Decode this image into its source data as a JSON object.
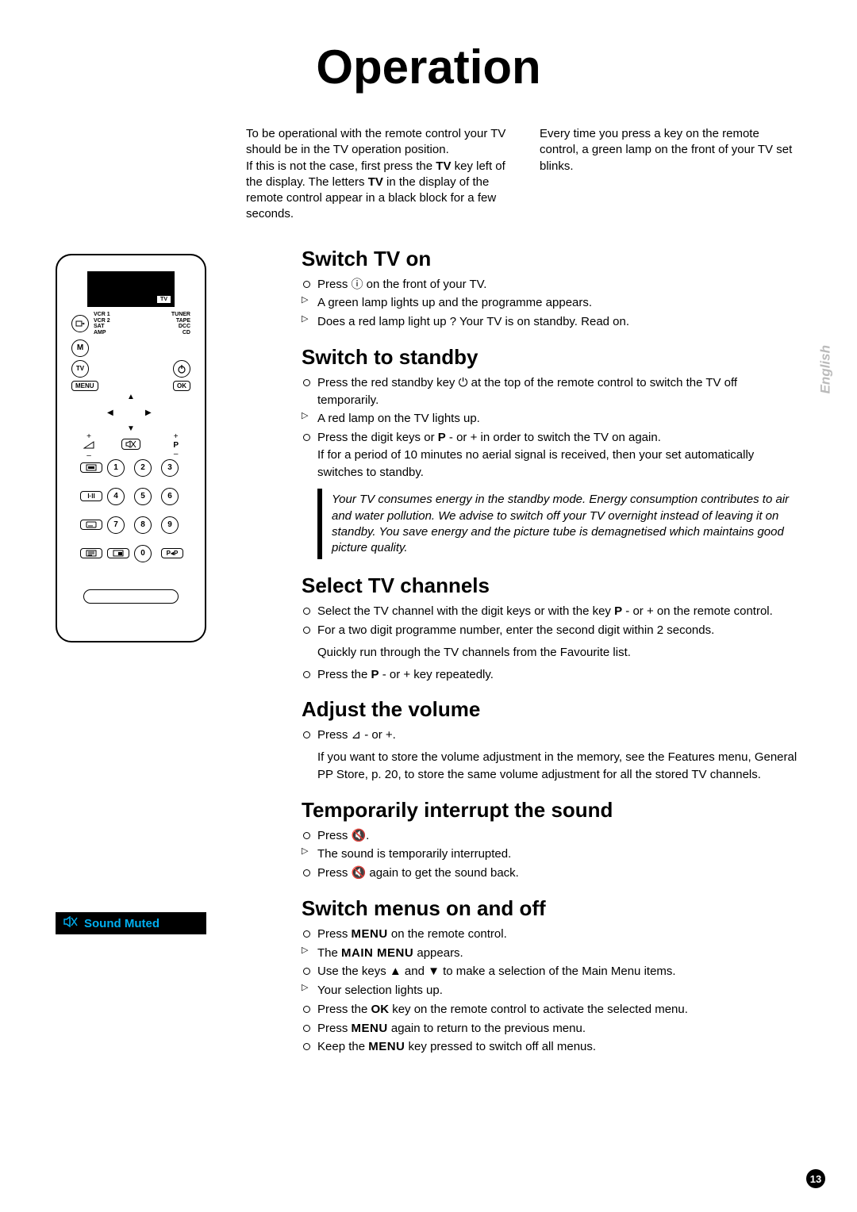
{
  "title": "Operation",
  "language_tab": "English",
  "page_number": "13",
  "intro": {
    "left": "To be operational with the remote control your TV should be in the TV operation position.\nIf this is not the case, first press the TV key left of the display. The letters TV in the display of the remote control appear in a black block for a few seconds.",
    "left_bold_1": "TV",
    "left_bold_2": "TV",
    "right": "Every time you press a key on the remote control, a green lamp on the front of your TV set blinks."
  },
  "remote": {
    "screen_tag": "TV",
    "left_labels": [
      "VCR 1",
      "VCR 2",
      "SAT",
      "AMP"
    ],
    "right_labels": [
      "TUNER",
      "TAPE",
      "DCC",
      "CD"
    ],
    "menu": "MENU",
    "ok": "OK",
    "m": "M",
    "tv": "TV",
    "vol_plus": "+",
    "vol_minus": "–",
    "p_label": "P",
    "p_plus": "+",
    "p_minus": "–",
    "num": [
      "1",
      "2",
      "3",
      "4",
      "5",
      "6",
      "7",
      "8",
      "9",
      "0"
    ],
    "pp": "P◂P",
    "dual": "I·II"
  },
  "side_note": {
    "text": "Sound Muted"
  },
  "sections": {
    "switch_on": {
      "heading": "Switch TV on",
      "items": [
        {
          "t": "o",
          "text": "Press ⓘ on the front of your TV."
        },
        {
          "t": "t",
          "text": "A green lamp lights up and the programme appears."
        },
        {
          "t": "t",
          "text": "Does a red lamp light up ? Your TV is on standby. Read on."
        }
      ]
    },
    "standby": {
      "heading": "Switch to standby",
      "items": [
        {
          "t": "o",
          "text": "Press the red standby key ⏻ at the top of the remote control to switch the TV off temporarily."
        },
        {
          "t": "t",
          "text": "A red lamp on the TV lights up."
        },
        {
          "t": "o",
          "mixed": [
            "Press the digit keys or ",
            {
              "b": "P"
            },
            " - or +  in order to switch the TV on again.",
            "\nIf for a period of 10 minutes no aerial signal is received, then your set automatically switches to standby."
          ]
        }
      ],
      "note": "Your TV consumes energy in the standby mode. Energy consumption contributes to air and water pollution. We advise to switch off your TV overnight instead of leaving it on standby. You save energy and the picture tube is demagnetised which maintains good picture quality."
    },
    "channels": {
      "heading": "Select TV channels",
      "items": [
        {
          "t": "o",
          "mixed": [
            "Select the TV channel with the digit keys or with the key ",
            {
              "b": "P"
            },
            " - or + on the remote control."
          ]
        },
        {
          "t": "o",
          "text": "For a two digit programme number, enter the second digit within 2 seconds."
        }
      ],
      "plain": "Quickly run through the TV channels from the Favourite list.",
      "items2": [
        {
          "t": "o",
          "mixed": [
            "Press the ",
            {
              "b": "P"
            },
            " - or + key repeatedly."
          ]
        }
      ]
    },
    "volume": {
      "heading": "Adjust the volume",
      "items": [
        {
          "t": "o",
          "text": "Press ⊿ - or +."
        }
      ],
      "plain": "If you want to store the volume adjustment in the memory, see the Features menu, General PP Store, p. 20, to store the same volume adjustment for all the stored TV channels."
    },
    "mute": {
      "heading": "Temporarily interrupt the sound",
      "items": [
        {
          "t": "o",
          "text": "Press 🔇."
        },
        {
          "t": "t",
          "text": "The sound is temporarily interrupted."
        },
        {
          "t": "o",
          "text": "Press 🔇 again to get the sound back."
        }
      ]
    },
    "menus": {
      "heading": "Switch menus on and off",
      "items": [
        {
          "t": "o",
          "mixed": [
            "Press ",
            {
              "sc": "MENU"
            },
            " on the remote control."
          ]
        },
        {
          "t": "t",
          "mixed": [
            "The ",
            {
              "sc": "MAIN MENU"
            },
            " appears."
          ]
        },
        {
          "t": "o",
          "text": "Use the keys ▲ and ▼ to make a selection of the Main Menu items."
        },
        {
          "t": "t",
          "text": "Your selection lights up."
        },
        {
          "t": "o",
          "mixed": [
            "Press the ",
            {
              "b": "OK"
            },
            " key on the remote control to activate the selected menu."
          ]
        },
        {
          "t": "o",
          "mixed": [
            "Press ",
            {
              "sc": "MENU"
            },
            " again to return to the previous menu."
          ]
        },
        {
          "t": "o",
          "mixed": [
            "Keep the ",
            {
              "sc": "MENU"
            },
            " key pressed to switch off all menus."
          ]
        }
      ]
    }
  }
}
